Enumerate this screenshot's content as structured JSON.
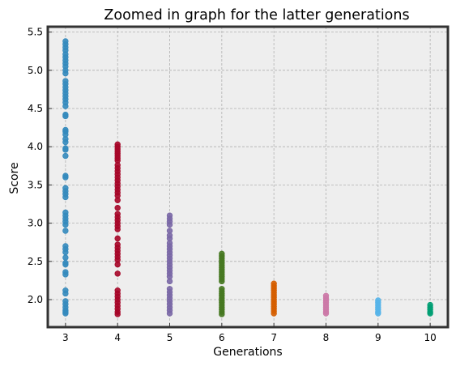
{
  "chart_data": {
    "type": "scatter",
    "title": "Zoomed in graph for the latter generations",
    "xlabel": "Generations",
    "ylabel": "Score",
    "xlim": [
      2.66,
      10.34
    ],
    "ylim": [
      1.64,
      5.57
    ],
    "xticks": [
      "3",
      "4",
      "5",
      "6",
      "7",
      "8",
      "9",
      "10"
    ],
    "yticks": [
      "2.0",
      "2.5",
      "3.0",
      "3.5",
      "4.0",
      "4.5",
      "5.0",
      "5.5"
    ],
    "grid": true,
    "colors": {
      "background": "#eeeeee",
      "frame": "#333333"
    },
    "series": [
      {
        "x": 3,
        "color": "#348abd",
        "y": [
          5.38,
          5.34,
          5.3,
          5.26,
          5.21,
          5.17,
          5.13,
          5.09,
          5.05,
          5.0,
          4.96,
          4.86,
          4.82,
          4.78,
          4.74,
          4.7,
          4.66,
          4.62,
          4.58,
          4.53,
          4.42,
          4.4,
          4.22,
          4.2,
          4.16,
          4.1,
          4.06,
          3.98,
          3.96,
          3.88,
          3.62,
          3.6,
          3.46,
          3.42,
          3.38,
          3.34,
          3.14,
          3.1,
          3.06,
          3.02,
          2.98,
          2.9,
          2.7,
          2.66,
          2.62,
          2.55,
          2.48,
          2.46,
          2.36,
          2.33,
          2.12,
          2.08,
          1.98,
          1.94,
          1.9,
          1.86,
          1.84,
          1.82
        ]
      },
      {
        "x": 4,
        "color": "#a60628",
        "y": [
          4.03,
          4.0,
          3.97,
          3.94,
          3.91,
          3.88,
          3.85,
          3.82,
          3.76,
          3.72,
          3.68,
          3.64,
          3.6,
          3.56,
          3.52,
          3.48,
          3.44,
          3.4,
          3.36,
          3.3,
          3.2,
          3.12,
          3.08,
          3.04,
          3.0,
          2.96,
          2.92,
          2.8,
          2.72,
          2.68,
          2.64,
          2.6,
          2.56,
          2.52,
          2.46,
          2.34,
          2.12,
          2.08,
          2.04,
          2.0,
          1.96,
          1.92,
          1.88,
          1.84,
          1.81
        ]
      },
      {
        "x": 5,
        "color": "#7a68a6",
        "y": [
          3.1,
          3.06,
          3.02,
          2.98,
          2.9,
          2.84,
          2.8,
          2.74,
          2.7,
          2.66,
          2.62,
          2.58,
          2.54,
          2.5,
          2.46,
          2.42,
          2.38,
          2.34,
          2.3,
          2.24,
          2.14,
          2.1,
          2.06,
          2.02,
          1.98,
          1.94,
          1.9,
          1.86,
          1.82
        ]
      },
      {
        "x": 6,
        "color": "#467821",
        "y": [
          2.6,
          2.57,
          2.54,
          2.51,
          2.48,
          2.45,
          2.42,
          2.39,
          2.36,
          2.33,
          2.3,
          2.27,
          2.24,
          2.14,
          2.11,
          2.08,
          2.05,
          2.02,
          1.99,
          1.96,
          1.93,
          1.9,
          1.87,
          1.84,
          1.81
        ]
      },
      {
        "x": 7,
        "color": "#d55e00",
        "y": [
          2.21,
          2.18,
          2.15,
          2.12,
          2.09,
          2.06,
          2.03,
          2.0,
          1.97,
          1.94,
          1.91,
          1.88,
          1.85,
          1.82
        ]
      },
      {
        "x": 8,
        "color": "#cc79a7",
        "y": [
          2.05,
          2.02,
          1.99,
          1.96,
          1.93,
          1.9,
          1.87,
          1.84,
          1.82
        ]
      },
      {
        "x": 9,
        "color": "#56b4e9",
        "y": [
          1.99,
          1.96,
          1.93,
          1.9,
          1.87,
          1.84,
          1.82
        ]
      },
      {
        "x": 10,
        "color": "#009e73",
        "y": [
          1.93,
          1.9,
          1.87,
          1.84,
          1.82
        ]
      }
    ]
  }
}
